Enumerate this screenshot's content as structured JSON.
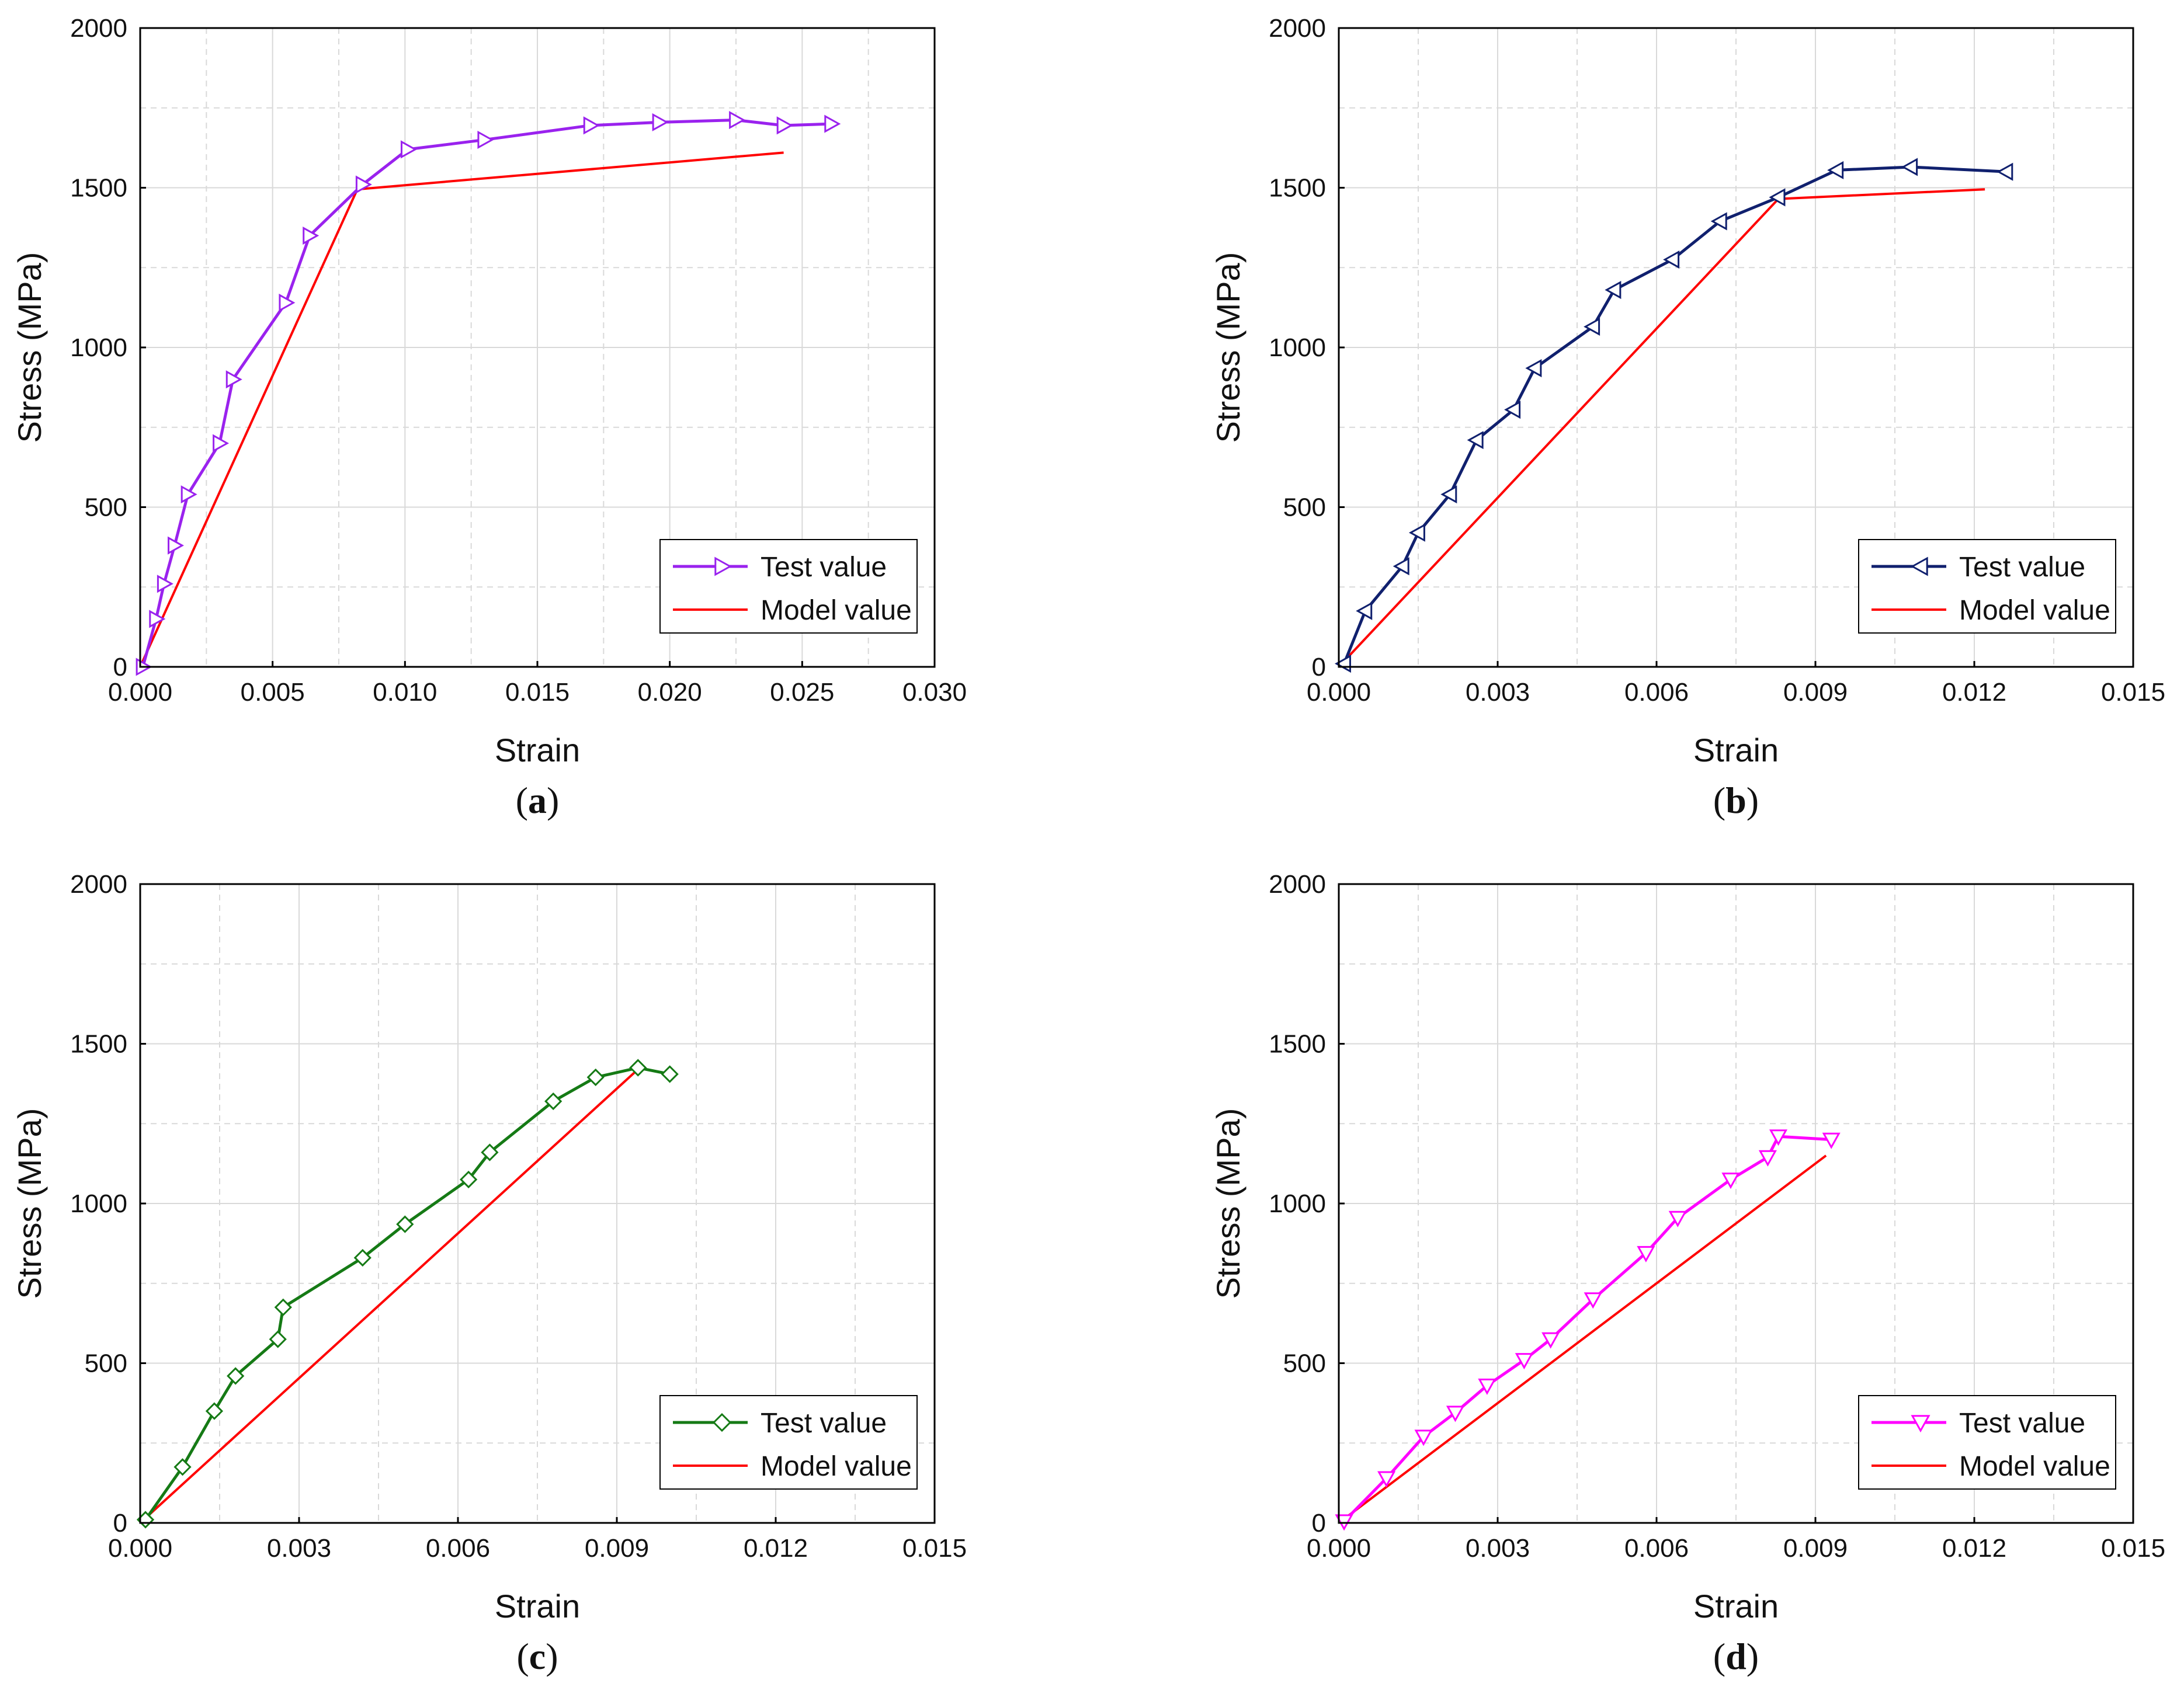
{
  "figure": {
    "panel_labels": [
      "(a)",
      "(b)",
      "(c)",
      "(d)"
    ]
  },
  "colors": {
    "model": "#ff0000",
    "grid": "#d9d9d9",
    "axis": "#000000"
  },
  "chart_data": [
    {
      "panel": "(a)",
      "type": "line",
      "xlabel": "Strain",
      "ylabel": "Stress (MPa)",
      "xlim": [
        0,
        0.03
      ],
      "ylim": [
        0,
        2000
      ],
      "xticks": [
        0,
        0.005,
        0.01,
        0.015,
        0.02,
        0.025,
        0.03
      ],
      "xtick_labels": [
        "0.000",
        "0.005",
        "0.010",
        "0.015",
        "0.020",
        "0.025",
        "0.030"
      ],
      "yticks": [
        0,
        500,
        1000,
        1500,
        2000
      ],
      "ytick_labels": [
        "0",
        "500",
        "1000",
        "1500",
        "2000"
      ],
      "grid": true,
      "legend_position": "bottom-right",
      "series": [
        {
          "name": "Test value",
          "color": "#9a22ee",
          "marker": "triangle-right",
          "x": [
            0.0001,
            0.0006,
            0.0009,
            0.0013,
            0.0018,
            0.003,
            0.0035,
            0.0055,
            0.0064,
            0.0084,
            0.0101,
            0.013,
            0.017,
            0.0196,
            0.0225,
            0.0243,
            0.0261
          ],
          "y": [
            0,
            150,
            260,
            380,
            540,
            700,
            900,
            1140,
            1350,
            1510,
            1620,
            1650,
            1695,
            1705,
            1712,
            1695,
            1700
          ]
        },
        {
          "name": "Model value",
          "color": "#ff0000",
          "marker": "none",
          "x": [
            0,
            0.0082,
            0.0243
          ],
          "y": [
            0,
            1495,
            1610
          ]
        }
      ]
    },
    {
      "panel": "(b)",
      "type": "line",
      "xlabel": "Strain",
      "ylabel": "Stress (MPa)",
      "xlim": [
        0,
        0.015
      ],
      "ylim": [
        0,
        2000
      ],
      "xticks": [
        0,
        0.003,
        0.006,
        0.009,
        0.012,
        0.015
      ],
      "xtick_labels": [
        "0.000",
        "0.003",
        "0.006",
        "0.009",
        "0.012",
        "0.015"
      ],
      "yticks": [
        0,
        500,
        1000,
        1500,
        2000
      ],
      "ytick_labels": [
        "0",
        "500",
        "1000",
        "1500",
        "2000"
      ],
      "grid": true,
      "legend_position": "bottom-right",
      "series": [
        {
          "name": "Test value",
          "color": "#10206e",
          "marker": "triangle-left",
          "x": [
            0.0001,
            0.0005,
            0.0012,
            0.0015,
            0.0021,
            0.0026,
            0.0033,
            0.0037,
            0.0048,
            0.0052,
            0.0063,
            0.0072,
            0.0083,
            0.0094,
            0.0108,
            0.0126
          ],
          "y": [
            10,
            175,
            315,
            420,
            540,
            710,
            805,
            935,
            1065,
            1180,
            1275,
            1395,
            1470,
            1555,
            1565,
            1550
          ]
        },
        {
          "name": "Model value",
          "color": "#ff0000",
          "marker": "none",
          "x": [
            0,
            0.0083,
            0.0122
          ],
          "y": [
            0,
            1465,
            1495
          ]
        }
      ]
    },
    {
      "panel": "(c)",
      "type": "line",
      "xlabel": "Strain",
      "ylabel": "Stress (MPa)",
      "xlim": [
        0,
        0.015
      ],
      "ylim": [
        0,
        2000
      ],
      "xticks": [
        0,
        0.003,
        0.006,
        0.009,
        0.012,
        0.015
      ],
      "xtick_labels": [
        "0.000",
        "0.003",
        "0.006",
        "0.009",
        "0.012",
        "0.015"
      ],
      "yticks": [
        0,
        500,
        1000,
        1500,
        2000
      ],
      "ytick_labels": [
        "0",
        "500",
        "1000",
        "1500",
        "2000"
      ],
      "grid": true,
      "legend_position": "bottom-right",
      "series": [
        {
          "name": "Test value",
          "color": "#157a15",
          "marker": "diamond",
          "x": [
            0.0001,
            0.0008,
            0.0014,
            0.0018,
            0.0026,
            0.0027,
            0.0042,
            0.005,
            0.0062,
            0.0066,
            0.0078,
            0.0086,
            0.0094,
            0.01
          ],
          "y": [
            10,
            175,
            350,
            460,
            575,
            675,
            830,
            935,
            1075,
            1160,
            1320,
            1395,
            1425,
            1405
          ]
        },
        {
          "name": "Model value",
          "color": "#ff0000",
          "marker": "none",
          "x": [
            0,
            0.0094
          ],
          "y": [
            0,
            1420
          ]
        }
      ]
    },
    {
      "panel": "(d)",
      "type": "line",
      "xlabel": "Strain",
      "ylabel": "Stress (MPa)",
      "xlim": [
        0,
        0.015
      ],
      "ylim": [
        0,
        2000
      ],
      "xticks": [
        0,
        0.003,
        0.006,
        0.009,
        0.012,
        0.015
      ],
      "xtick_labels": [
        "0.000",
        "0.003",
        "0.006",
        "0.009",
        "0.012",
        "0.015"
      ],
      "yticks": [
        0,
        500,
        1000,
        1500,
        2000
      ],
      "ytick_labels": [
        "0",
        "500",
        "1000",
        "1500",
        "2000"
      ],
      "grid": true,
      "legend_position": "bottom-right",
      "series": [
        {
          "name": "Test value",
          "color": "#ff00ff",
          "marker": "triangle-down",
          "x": [
            0.0001,
            0.0009,
            0.0016,
            0.0022,
            0.0028,
            0.0035,
            0.004,
            0.0048,
            0.0058,
            0.0064,
            0.0074,
            0.0081,
            0.0083,
            0.0093
          ],
          "y": [
            5,
            140,
            270,
            345,
            430,
            510,
            575,
            700,
            845,
            955,
            1075,
            1145,
            1210,
            1200
          ]
        },
        {
          "name": "Model value",
          "color": "#ff0000",
          "marker": "none",
          "x": [
            0,
            0.0092
          ],
          "y": [
            0,
            1150
          ]
        }
      ]
    }
  ]
}
